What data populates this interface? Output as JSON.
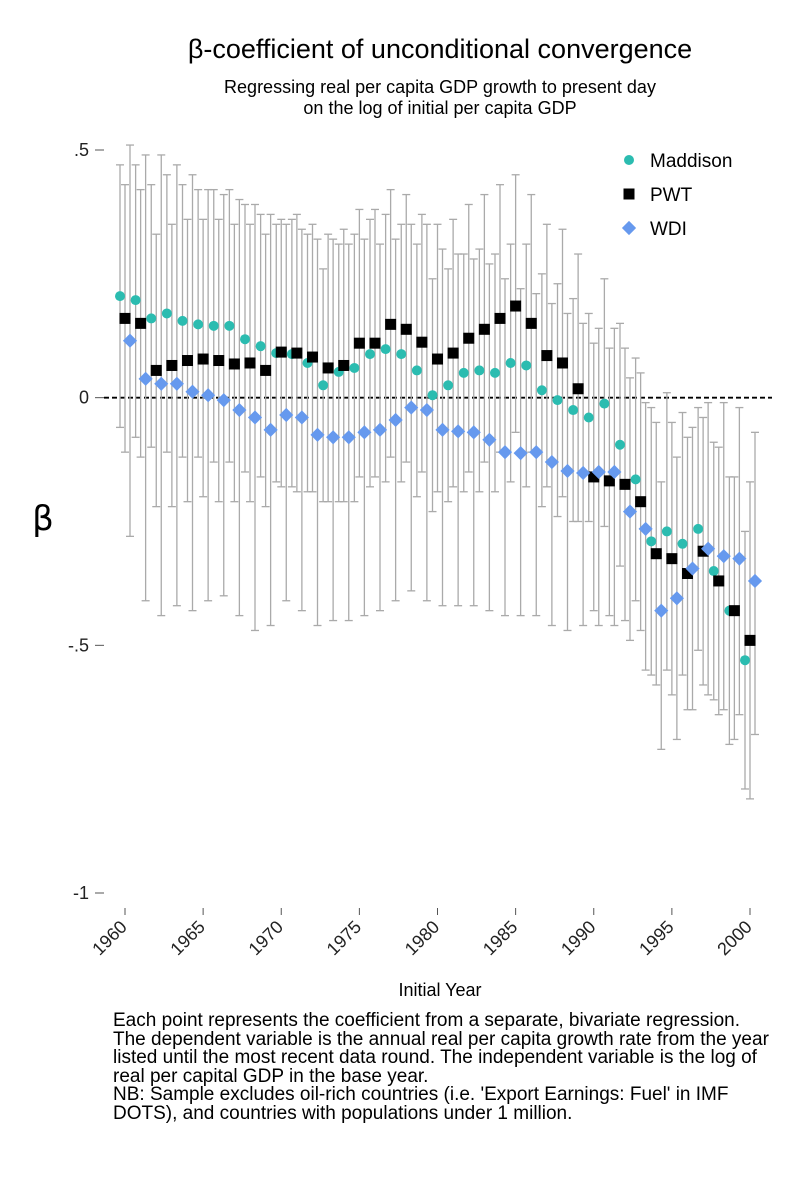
{
  "chart_data": {
    "type": "scatter",
    "title": "β-coefficient of unconditional convergence",
    "subtitle_lines": [
      "Regressing real per capita GDP growth to present day",
      "on the log of initial per capita GDP"
    ],
    "xlabel": "Initial Year",
    "ylabel": "β",
    "xlim": [
      1959.5,
      2000.5
    ],
    "ylim": [
      -1,
      0.5
    ],
    "yticks": [
      0.5,
      0,
      -0.5,
      -1
    ],
    "ytick_labels": [
      ".5",
      "0",
      "-.5",
      "-1"
    ],
    "xticks": [
      1960,
      1965,
      1970,
      1975,
      1980,
      1985,
      1990,
      1995,
      2000
    ],
    "xtick_labels": [
      "1960",
      "1965",
      "1970",
      "1975",
      "1980",
      "1985",
      "1990",
      "1995",
      "2000"
    ],
    "reference_line_y": 0,
    "legend_position": "top-right",
    "colors": {
      "Maddison": "#2bbcb0",
      "PWT": "#000000",
      "WDI": "#6699ee",
      "errorbar": "#aaaaaa",
      "refline": "#000000"
    },
    "series": [
      {
        "name": "Maddison",
        "marker": "circle",
        "x": [
          1960,
          1961,
          1962,
          1963,
          1964,
          1965,
          1966,
          1967,
          1968,
          1969,
          1970,
          1971,
          1972,
          1973,
          1974,
          1975,
          1976,
          1977,
          1978,
          1979,
          1980,
          1981,
          1982,
          1983,
          1984,
          1985,
          1986,
          1987,
          1988,
          1989,
          1990,
          1991,
          1992,
          1993,
          1994,
          1995,
          1996,
          1997,
          1998,
          1999,
          2000
        ],
        "values": [
          0.205,
          0.197,
          0.16,
          0.17,
          0.155,
          0.148,
          0.145,
          0.145,
          0.118,
          0.104,
          0.09,
          0.088,
          0.07,
          0.025,
          0.052,
          0.06,
          0.088,
          0.098,
          0.088,
          0.055,
          0.005,
          0.025,
          0.05,
          0.055,
          0.05,
          0.07,
          0.065,
          0.015,
          -0.005,
          -0.025,
          -0.04,
          -0.012,
          -0.095,
          -0.165,
          -0.29,
          -0.27,
          -0.295,
          -0.265,
          -0.35,
          -0.43,
          -0.53
        ],
        "ci_low": [
          -0.06,
          -0.08,
          -0.1,
          -0.11,
          -0.12,
          -0.12,
          -0.13,
          -0.13,
          -0.15,
          -0.16,
          -0.17,
          -0.18,
          -0.19,
          -0.21,
          -0.21,
          -0.21,
          -0.18,
          -0.17,
          -0.17,
          -0.2,
          -0.23,
          -0.21,
          -0.19,
          -0.19,
          -0.19,
          -0.17,
          -0.18,
          -0.22,
          -0.24,
          -0.25,
          -0.25,
          -0.26,
          -0.34,
          -0.41,
          -0.56,
          -0.55,
          -0.56,
          -0.51,
          -0.61,
          -0.7,
          -0.79
        ],
        "ci_high": [
          0.47,
          0.47,
          0.43,
          0.45,
          0.43,
          0.42,
          0.42,
          0.42,
          0.39,
          0.37,
          0.35,
          0.36,
          0.33,
          0.26,
          0.31,
          0.33,
          0.36,
          0.37,
          0.35,
          0.31,
          0.24,
          0.26,
          0.29,
          0.3,
          0.29,
          0.31,
          0.31,
          0.25,
          0.23,
          0.2,
          0.17,
          0.24,
          0.15,
          0.08,
          -0.02,
          0.01,
          -0.03,
          -0.02,
          -0.09,
          -0.16,
          -0.27
        ]
      },
      {
        "name": "PWT",
        "marker": "square",
        "x": [
          1960,
          1961,
          1962,
          1963,
          1964,
          1965,
          1966,
          1967,
          1968,
          1969,
          1970,
          1971,
          1972,
          1973,
          1974,
          1975,
          1976,
          1977,
          1978,
          1979,
          1980,
          1981,
          1982,
          1983,
          1984,
          1985,
          1986,
          1987,
          1988,
          1989,
          1990,
          1991,
          1992,
          1993,
          1994,
          1995,
          1996,
          1997,
          1998,
          1999,
          2000
        ],
        "values": [
          0.16,
          0.15,
          0.055,
          0.065,
          0.075,
          0.078,
          0.075,
          0.068,
          0.07,
          0.055,
          0.092,
          0.09,
          0.082,
          0.06,
          0.065,
          0.11,
          0.11,
          0.148,
          0.138,
          0.112,
          0.078,
          0.09,
          0.12,
          0.138,
          0.16,
          0.185,
          0.15,
          0.085,
          0.07,
          0.018,
          -0.16,
          -0.168,
          -0.175,
          -0.21,
          -0.315,
          -0.325,
          -0.355,
          -0.31,
          -0.37,
          -0.43,
          -0.49
        ],
        "ci_low": [
          -0.11,
          -0.12,
          -0.22,
          -0.22,
          -0.21,
          -0.2,
          -0.21,
          -0.21,
          -0.21,
          -0.22,
          -0.18,
          -0.19,
          -0.19,
          -0.21,
          -0.21,
          -0.16,
          -0.16,
          -0.12,
          -0.13,
          -0.15,
          -0.19,
          -0.18,
          -0.15,
          -0.13,
          -0.11,
          -0.07,
          -0.11,
          -0.18,
          -0.2,
          -0.25,
          -0.43,
          -0.44,
          -0.45,
          -0.47,
          -0.58,
          -0.6,
          -0.63,
          -0.58,
          -0.64,
          -0.69,
          -0.81
        ],
        "ci_high": [
          0.43,
          0.42,
          0.33,
          0.35,
          0.36,
          0.36,
          0.36,
          0.35,
          0.35,
          0.33,
          0.36,
          0.37,
          0.35,
          0.33,
          0.34,
          0.38,
          0.38,
          0.42,
          0.41,
          0.37,
          0.35,
          0.36,
          0.39,
          0.41,
          0.43,
          0.45,
          0.41,
          0.35,
          0.34,
          0.29,
          0.11,
          0.1,
          0.1,
          0.05,
          -0.05,
          -0.05,
          -0.08,
          -0.04,
          -0.1,
          -0.16,
          -0.17
        ]
      },
      {
        "name": "WDI",
        "marker": "diamond",
        "x": [
          1960,
          1961,
          1962,
          1963,
          1964,
          1965,
          1966,
          1967,
          1968,
          1969,
          1970,
          1971,
          1972,
          1973,
          1974,
          1975,
          1976,
          1977,
          1978,
          1979,
          1980,
          1981,
          1982,
          1983,
          1984,
          1985,
          1986,
          1987,
          1988,
          1989,
          1990,
          1991,
          1992,
          1993,
          1994,
          1995,
          1996,
          1997,
          1998,
          1999,
          2000
        ],
        "values": [
          0.115,
          0.038,
          0.028,
          0.028,
          0.012,
          0.005,
          -0.005,
          -0.025,
          -0.04,
          -0.065,
          -0.035,
          -0.04,
          -0.075,
          -0.08,
          -0.08,
          -0.07,
          -0.065,
          -0.045,
          -0.02,
          -0.025,
          -0.065,
          -0.068,
          -0.07,
          -0.085,
          -0.11,
          -0.112,
          -0.11,
          -0.13,
          -0.148,
          -0.152,
          -0.15,
          -0.15,
          -0.23,
          -0.265,
          -0.43,
          -0.405,
          -0.345,
          -0.305,
          -0.32,
          -0.325,
          -0.37
        ],
        "ci_low": [
          -0.28,
          -0.41,
          -0.44,
          -0.42,
          -0.43,
          -0.41,
          -0.4,
          -0.44,
          -0.47,
          -0.46,
          -0.41,
          -0.43,
          -0.46,
          -0.45,
          -0.45,
          -0.44,
          -0.43,
          -0.41,
          -0.39,
          -0.41,
          -0.42,
          -0.42,
          -0.42,
          -0.43,
          -0.44,
          -0.44,
          -0.44,
          -0.46,
          -0.47,
          -0.46,
          -0.46,
          -0.46,
          -0.49,
          -0.55,
          -0.71,
          -0.69,
          -0.63,
          -0.6,
          -0.63,
          -0.64,
          -0.68
        ],
        "ci_high": [
          0.51,
          0.49,
          0.49,
          0.47,
          0.45,
          0.42,
          0.41,
          0.4,
          0.39,
          0.37,
          0.35,
          0.34,
          0.32,
          0.32,
          0.31,
          0.32,
          0.31,
          0.32,
          0.35,
          0.35,
          0.3,
          0.29,
          0.28,
          0.27,
          0.24,
          0.22,
          0.21,
          0.19,
          0.17,
          0.15,
          0.14,
          0.14,
          0.04,
          -0.01,
          -0.17,
          -0.12,
          -0.06,
          -0.01,
          -0.01,
          -0.02,
          -0.07
        ]
      }
    ]
  },
  "caption": {
    "paragraph1": "Each point represents the coefficient from a separate, bivariate regression. The dependent variable is the annual real per capita growth rate from the year listed until the most recent data round. The independent variable is the log of real per capital GDP in the base year.",
    "paragraph2": "NB: Sample excludes oil-rich countries (i.e. 'Export Earnings: Fuel' in IMF DOTS), and countries with populations under 1 million."
  }
}
